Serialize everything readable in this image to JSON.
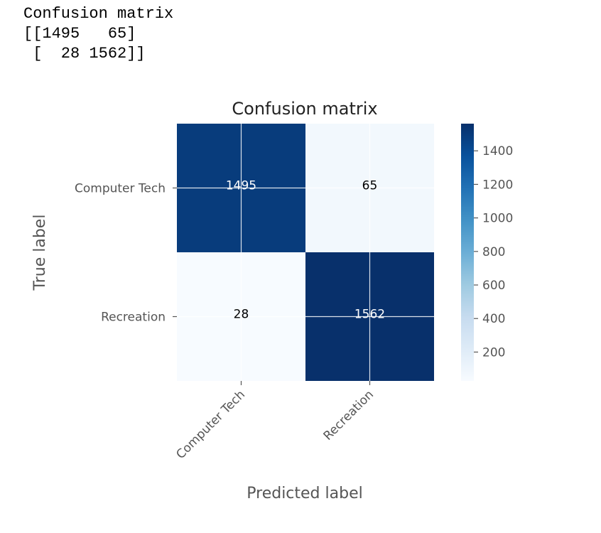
{
  "console": {
    "lines": [
      "Confusion matrix",
      "[[1495   65]",
      " [  28 1562]]"
    ]
  },
  "chart_data": {
    "type": "heatmap",
    "title": "Confusion matrix",
    "xlabel": "Predicted label",
    "ylabel": "True label",
    "x_categories": [
      "Computer Tech",
      "Recreation"
    ],
    "y_categories": [
      "Computer Tech",
      "Recreation"
    ],
    "values": [
      [
        1495,
        65
      ],
      [
        28,
        1562
      ]
    ],
    "colormap": "Blues",
    "colorbar": {
      "ticks": [
        200,
        400,
        600,
        800,
        1000,
        1200,
        1400
      ],
      "range": [
        28,
        1562
      ]
    },
    "grid": true,
    "colors": {
      "low": "#f7fbff",
      "high": "#08306b",
      "text_dark": "#000000",
      "text_light": "#ffffff",
      "grid": "#ffffff"
    }
  }
}
